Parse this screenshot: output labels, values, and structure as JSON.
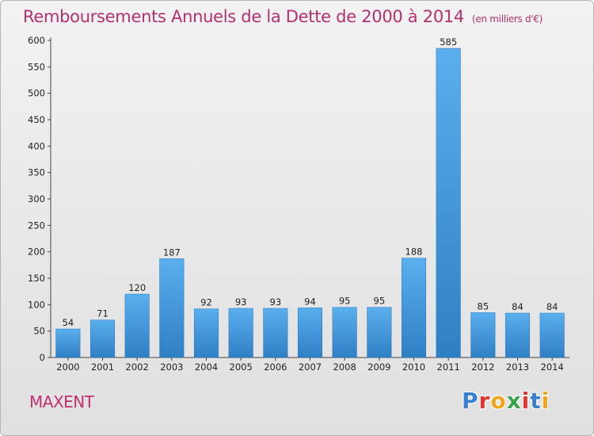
{
  "header": {
    "title": "Remboursements Annuels de la Dette de 2000 à 2014",
    "subtitle": "(en milliers d'€)"
  },
  "footer": {
    "commune": "MAXENT",
    "logo": {
      "letters": [
        "P",
        "r",
        "o",
        "x",
        "i",
        "t",
        "i"
      ],
      "colors": [
        "#3a7fd0",
        "#e5342e",
        "#f2a41c",
        "#3aa34a",
        "#e5342e",
        "#3a7fd0",
        "#f2a41c"
      ]
    }
  },
  "chart_data": {
    "type": "bar",
    "title": "Remboursements Annuels de la Dette de 2000 à 2014",
    "subtitle": "(en milliers d'€)",
    "categories": [
      "2000",
      "2001",
      "2002",
      "2003",
      "2004",
      "2005",
      "2006",
      "2007",
      "2008",
      "2009",
      "2010",
      "2011",
      "2012",
      "2013",
      "2014"
    ],
    "values": [
      54,
      71,
      120,
      187,
      92,
      93,
      93,
      94,
      95,
      95,
      188,
      585,
      85,
      84,
      84
    ],
    "ylim": [
      0,
      600
    ],
    "yticks": [
      0,
      50,
      100,
      150,
      200,
      250,
      300,
      350,
      400,
      450,
      500,
      550,
      600
    ],
    "grid": false,
    "bar_color": "#4a9fe3"
  }
}
